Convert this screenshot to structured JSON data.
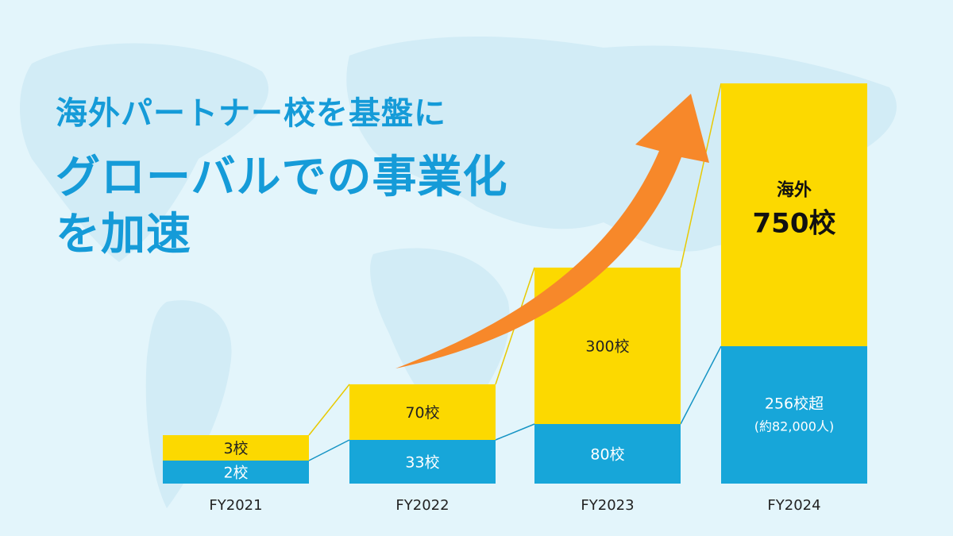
{
  "headline": {
    "line1": "海外パートナー校を基盤に",
    "line2": "グローバルでの事業化",
    "line3": "を加速"
  },
  "colors": {
    "background": "#e3f5fb",
    "headline": "#159bd8",
    "overseas": "#fcd900",
    "domestic": "#17a6d9",
    "arrow": "#f7882a",
    "connector_overseas": "#e8c900",
    "connector_domestic": "#1594c4"
  },
  "chart_data": {
    "type": "bar",
    "stacked": true,
    "categories": [
      "FY2021",
      "FY2022",
      "FY2023",
      "FY2024"
    ],
    "series": [
      {
        "key": "domestic",
        "values": [
          2,
          33,
          80,
          256
        ],
        "labels": [
          "2校",
          "33校",
          "80校",
          "256校超"
        ],
        "sublabels": [
          "",
          "",
          "",
          "(約82,000人)"
        ]
      },
      {
        "key": "overseas",
        "name": "海外",
        "values": [
          3,
          70,
          300,
          750
        ],
        "labels": [
          "3校",
          "70校",
          "300校",
          "750校"
        ]
      }
    ],
    "annotations": [
      "海外"
    ],
    "trend_arrow": true
  }
}
